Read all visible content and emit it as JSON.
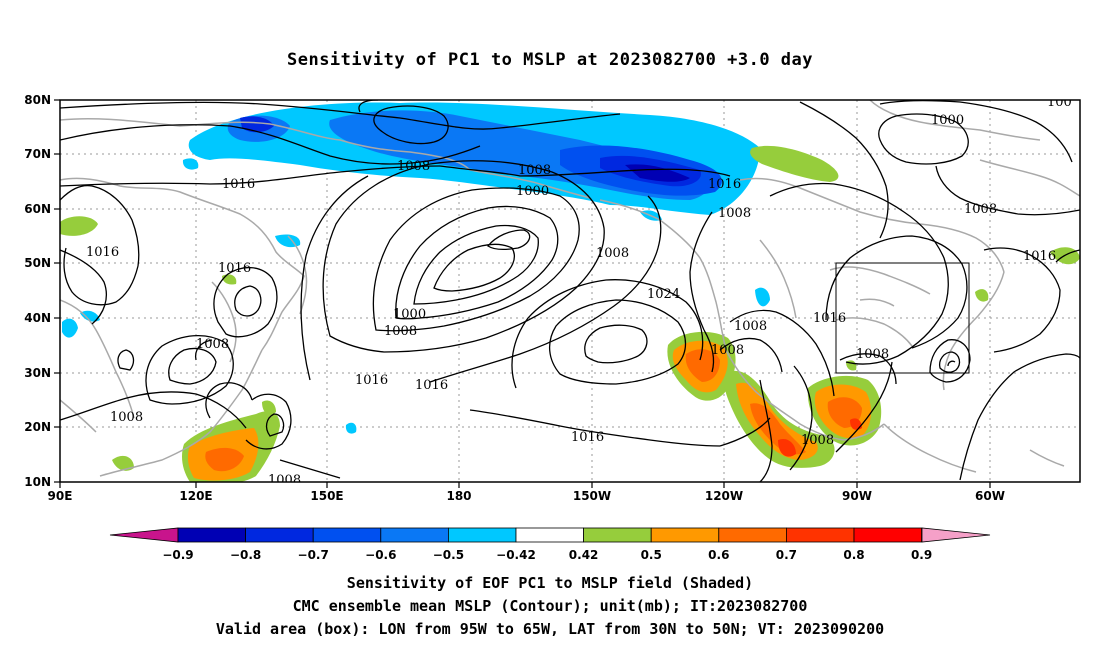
{
  "title": "Sensitivity of PC1 to MSLP at 2023082700 +3.0 day",
  "axes": {
    "lat_labels": [
      "80N",
      "70N",
      "60N",
      "50N",
      "40N",
      "30N",
      "20N",
      "10N"
    ],
    "lon_labels": [
      "90E",
      "120E",
      "150E",
      "180",
      "150W",
      "120W",
      "90W",
      "60W"
    ]
  },
  "contour_labels": {
    "l1": "1008",
    "l2": "1016",
    "l3": "1016",
    "l4": "1016",
    "l5": "1008",
    "l6": "1008",
    "l7": "1016",
    "l8": "1016",
    "l9": "1008",
    "l10": "1008",
    "l11": "1000",
    "l12": "1008",
    "l13": "1000",
    "l14": "1008",
    "l15": "1016",
    "l16": "1024",
    "l17": "1016",
    "l18": "1008",
    "l19": "1008",
    "l20": "1016",
    "l21": "1008",
    "l22": "1008",
    "l23": "1008",
    "l24": "1000",
    "l25": "1016",
    "l26": "100"
  },
  "valid_box": {
    "lon_from": "95W",
    "lon_to": "65W",
    "lat_from": "30N",
    "lat_to": "50N"
  },
  "colorbar": {
    "labels": [
      "-0.9",
      "-0.8",
      "-0.7",
      "-0.6",
      "-0.5",
      "-0.42",
      "0.42",
      "0.5",
      "0.6",
      "0.7",
      "0.8",
      "0.9"
    ],
    "colors": [
      "#0000b4",
      "#0028e0",
      "#0050f0",
      "#0a78f5",
      "#00c8ff",
      "#ffffff",
      "#96cd3c",
      "#ff9900",
      "#ff6a00",
      "#ff3300",
      "#ff0000"
    ],
    "low_end_color": "#c8148c",
    "high_end_color": "#f5a0c8"
  },
  "captions": {
    "line1": "Sensitivity of EOF PC1 to MSLP field (Shaded)",
    "line2": "CMC ensemble mean MSLP (Contour); unit(mb); IT:2023082700",
    "line3": "Valid area (box): LON from 95W to 65W, LAT from 30N to 50N; VT: 2023090200"
  }
}
